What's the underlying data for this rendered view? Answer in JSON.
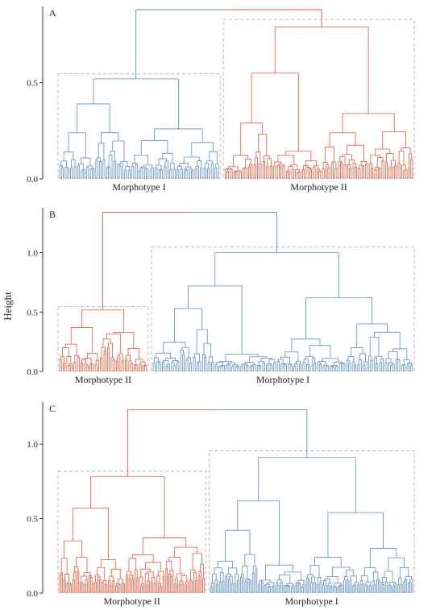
{
  "figure": {
    "ylabel": "Height",
    "colors": {
      "cluster_blue": "#5b8ec3",
      "cluster_red": "#e8583a",
      "axis": "#333333",
      "box": "#aaaaaa"
    }
  },
  "chart_data": [
    {
      "type": "dendrogram",
      "panel_label": "A",
      "ylim": [
        0,
        0.88
      ],
      "yticks": [
        0.0,
        0.5
      ],
      "ytick_labels": [
        "0.0",
        "0.5"
      ],
      "root_height": 0.88,
      "clusters": [
        {
          "name": "Morphotype I",
          "color": "blue",
          "share": 0.46,
          "merge_height": 0.52,
          "subcluster_heights": [
            0.39,
            0.26,
            0.24
          ],
          "leaf_band": [
            0.03,
            0.12
          ]
        },
        {
          "name": "Morphotype II",
          "color": "red",
          "share": 0.54,
          "merge_height": 0.79,
          "subcluster_heights": [
            0.55,
            0.34,
            0.29
          ],
          "leaf_band": [
            0.03,
            0.12
          ]
        }
      ]
    },
    {
      "type": "dendrogram",
      "panel_label": "B",
      "ylim": [
        0,
        1.35
      ],
      "yticks": [
        0.0,
        0.5,
        1.0
      ],
      "ytick_labels": [
        "0.0",
        "0.5",
        "1.0"
      ],
      "root_height": 1.34,
      "clusters": [
        {
          "name": "Morphotype II",
          "color": "red",
          "share": 0.26,
          "merge_height": 0.52,
          "subcluster_heights": [
            0.37,
            0.33,
            0.23
          ],
          "leaf_band": [
            0.03,
            0.13
          ]
        },
        {
          "name": "Morphotype I",
          "color": "blue",
          "share": 0.74,
          "merge_height": 1.0,
          "subcluster_heights": [
            0.72,
            0.62,
            0.53
          ],
          "leaf_band": [
            0.03,
            0.13
          ]
        }
      ]
    },
    {
      "type": "dendrogram",
      "panel_label": "C",
      "ylim": [
        0,
        1.26
      ],
      "yticks": [
        0.0,
        0.5,
        1.0
      ],
      "ytick_labels": [
        "0.0",
        "0.5",
        "1.0"
      ],
      "root_height": 1.23,
      "clusters": [
        {
          "name": "Morphotype II",
          "color": "red",
          "share": 0.42,
          "merge_height": 0.78,
          "subcluster_heights": [
            0.57,
            0.37,
            0.35
          ],
          "leaf_band": [
            0.03,
            0.13
          ]
        },
        {
          "name": "Morphotype I",
          "color": "blue",
          "share": 0.58,
          "merge_height": 0.91,
          "subcluster_heights": [
            0.62,
            0.54,
            0.42
          ],
          "leaf_band": [
            0.03,
            0.13
          ]
        }
      ]
    }
  ]
}
